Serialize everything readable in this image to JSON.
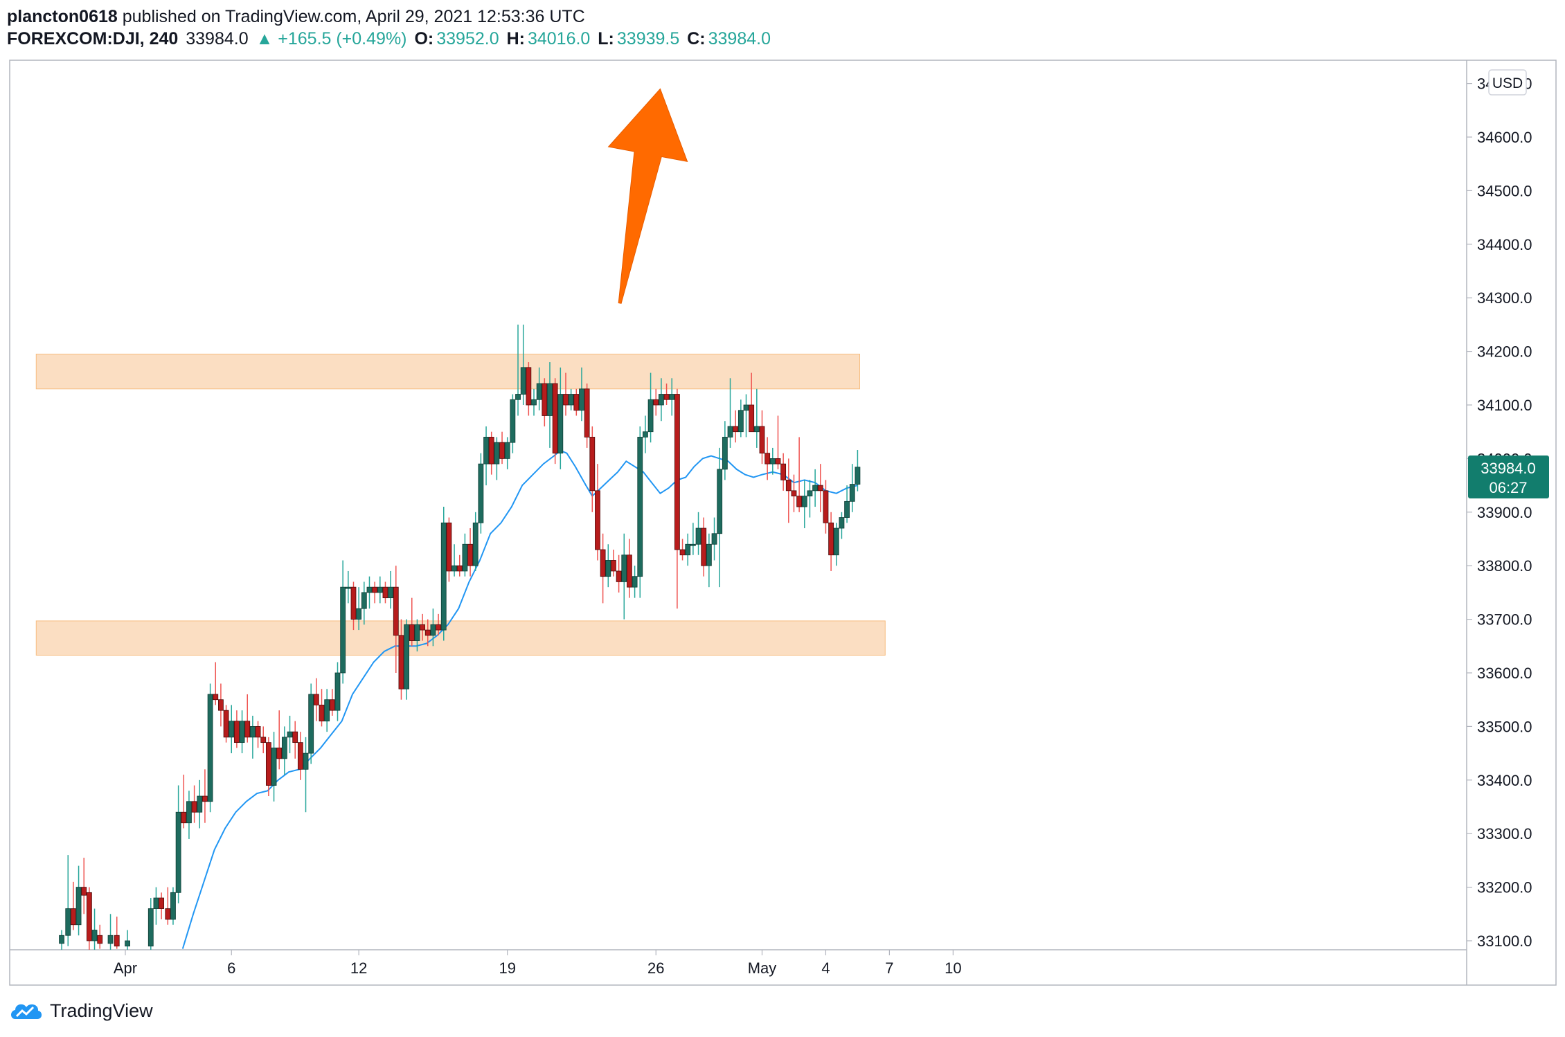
{
  "header": {
    "user": "plancton0618",
    "published": "published on TradingView.com, April 29, 2021 12:53:36 UTC",
    "symbol": "FOREXCOM:DJI, 240",
    "last": "33984.0",
    "change": "▲ +165.5 (+0.49%)",
    "o_label": "O:",
    "o_val": "33952.0",
    "h_label": "H:",
    "h_val": "34016.0",
    "l_label": "L:",
    "l_val": "33939.5",
    "c_label": "C:",
    "c_val": "33984.0"
  },
  "currency_label": "USD",
  "price_badge": {
    "price": "33984.0",
    "countdown": "06:27"
  },
  "branding": {
    "name": "TradingView"
  },
  "colors": {
    "up": "#26a69a",
    "down": "#ef5350",
    "candle_body_up": "#1e6b5e",
    "candle_body_down": "#b71c1c",
    "ma": "#2196f3",
    "zone_fill": "#fbd9b8",
    "zone_stroke": "#f5b26b",
    "arrow": "#ff6a00",
    "badge": "#127d6d"
  },
  "chart_data": {
    "type": "candlestick",
    "title": "",
    "ylabel": "",
    "ylim": [
      33080,
      34720
    ],
    "y_ticks": [
      "33100.0",
      "33200.0",
      "33300.0",
      "33400.0",
      "33500.0",
      "33600.0",
      "33700.0",
      "33800.0",
      "33900.0",
      "34000.0",
      "34100.0",
      "34200.0",
      "34300.0",
      "34400.0",
      "34500.0",
      "34600.0",
      "34700.0"
    ],
    "x_ticks": [
      {
        "label": "Apr",
        "day": 1
      },
      {
        "label": "6",
        "day": 6
      },
      {
        "label": "12",
        "day": 12
      },
      {
        "label": "19",
        "day": 19
      },
      {
        "label": "26",
        "day": 26
      },
      {
        "label": "May",
        "day": 31
      },
      {
        "label": "4",
        "day": 34
      },
      {
        "label": "7",
        "day": 37
      },
      {
        "label": "10",
        "day": 40
      }
    ],
    "zones": [
      {
        "from_day": -3.2,
        "to_day": 35.6,
        "low": 34130,
        "high": 34195
      },
      {
        "from_day": -3.2,
        "to_day": 36.8,
        "low": 33633,
        "high": 33697
      }
    ],
    "trend_arrow": {
      "from_day": 24.3,
      "from_price": 34290,
      "to_day": 26.2,
      "to_price": 34690
    },
    "candles": [
      [
        -2.0,
        33095,
        33120,
        33080,
        33110
      ],
      [
        -1.7,
        33110,
        33260,
        33090,
        33160
      ],
      [
        -1.45,
        33160,
        33210,
        33120,
        33130
      ],
      [
        -1.2,
        33130,
        33240,
        33110,
        33200
      ],
      [
        -0.95,
        33200,
        33255,
        33150,
        33185
      ],
      [
        -0.7,
        33190,
        33200,
        33080,
        33100
      ],
      [
        -0.45,
        33100,
        33160,
        33080,
        33120
      ],
      [
        -0.2,
        33110,
        33130,
        33085,
        33095
      ],
      [
        0.3,
        33095,
        33150,
        33080,
        33110
      ],
      [
        0.6,
        33110,
        33145,
        33085,
        33090
      ],
      [
        1.1,
        33090,
        33120,
        33080,
        33100
      ],
      [
        2.2,
        33090,
        33180,
        33080,
        33160
      ],
      [
        2.45,
        33160,
        33200,
        33130,
        33180
      ],
      [
        2.7,
        33180,
        33190,
        33140,
        33160
      ],
      [
        3.0,
        33160,
        33200,
        33130,
        33140
      ],
      [
        3.25,
        33140,
        33200,
        33130,
        33190
      ],
      [
        3.5,
        33190,
        33390,
        33170,
        33340
      ],
      [
        3.75,
        33340,
        33410,
        33310,
        33320
      ],
      [
        4.0,
        33320,
        33380,
        33290,
        33360
      ],
      [
        4.25,
        33360,
        33390,
        33320,
        33340
      ],
      [
        4.5,
        33340,
        33400,
        33310,
        33370
      ],
      [
        4.75,
        33370,
        33420,
        33320,
        33360
      ],
      [
        5.0,
        33360,
        33580,
        33340,
        33560
      ],
      [
        5.25,
        33560,
        33620,
        33540,
        33550
      ],
      [
        5.5,
        33550,
        33580,
        33500,
        33530
      ],
      [
        5.75,
        33530,
        33540,
        33470,
        33480
      ],
      [
        6.0,
        33480,
        33540,
        33450,
        33510
      ],
      [
        6.25,
        33510,
        33530,
        33460,
        33470
      ],
      [
        6.5,
        33470,
        33530,
        33450,
        33510
      ],
      [
        6.75,
        33510,
        33560,
        33470,
        33480
      ],
      [
        7.0,
        33480,
        33520,
        33440,
        33500
      ],
      [
        7.25,
        33500,
        33510,
        33460,
        33480
      ],
      [
        7.5,
        33480,
        33500,
        33450,
        33470
      ],
      [
        7.75,
        33470,
        33480,
        33370,
        33390
      ],
      [
        8.0,
        33390,
        33490,
        33360,
        33460
      ],
      [
        8.25,
        33460,
        33530,
        33420,
        33440
      ],
      [
        8.5,
        33440,
        33500,
        33410,
        33480
      ],
      [
        8.75,
        33480,
        33520,
        33450,
        33490
      ],
      [
        9.0,
        33490,
        33510,
        33440,
        33470
      ],
      [
        9.25,
        33470,
        33490,
        33400,
        33420
      ],
      [
        9.5,
        33420,
        33480,
        33340,
        33450
      ],
      [
        9.75,
        33450,
        33580,
        33430,
        33560
      ],
      [
        10.0,
        33560,
        33590,
        33510,
        33540
      ],
      [
        10.25,
        33540,
        33570,
        33500,
        33510
      ],
      [
        10.5,
        33510,
        33570,
        33490,
        33550
      ],
      [
        10.75,
        33550,
        33570,
        33520,
        33530
      ],
      [
        11.0,
        33530,
        33620,
        33510,
        33600
      ],
      [
        11.25,
        33600,
        33810,
        33580,
        33760
      ],
      [
        11.5,
        33760,
        33790,
        33730,
        33760
      ],
      [
        11.75,
        33760,
        33770,
        33680,
        33700
      ],
      [
        12.0,
        33700,
        33760,
        33680,
        33720
      ],
      [
        12.25,
        33720,
        33770,
        33690,
        33750
      ],
      [
        12.5,
        33750,
        33780,
        33720,
        33760
      ],
      [
        12.75,
        33760,
        33770,
        33730,
        33750
      ],
      [
        13.0,
        33750,
        33780,
        33730,
        33760
      ],
      [
        13.25,
        33760,
        33770,
        33730,
        33740
      ],
      [
        13.5,
        33740,
        33790,
        33720,
        33760
      ],
      [
        13.75,
        33760,
        33800,
        33600,
        33670
      ],
      [
        14.0,
        33670,
        33700,
        33550,
        33570
      ],
      [
        14.25,
        33570,
        33700,
        33550,
        33690
      ],
      [
        14.5,
        33690,
        33740,
        33650,
        33660
      ],
      [
        14.75,
        33660,
        33700,
        33640,
        33690
      ],
      [
        15.0,
        33690,
        33710,
        33660,
        33680
      ],
      [
        15.25,
        33680,
        33700,
        33650,
        33670
      ],
      [
        15.5,
        33670,
        33720,
        33650,
        33690
      ],
      [
        15.75,
        33690,
        33710,
        33670,
        33680
      ],
      [
        16.0,
        33680,
        33910,
        33660,
        33880
      ],
      [
        16.25,
        33880,
        33890,
        33770,
        33790
      ],
      [
        16.5,
        33790,
        33840,
        33780,
        33800
      ],
      [
        16.75,
        33800,
        33820,
        33780,
        33790
      ],
      [
        17.0,
        33790,
        33860,
        33780,
        33840
      ],
      [
        17.25,
        33840,
        33870,
        33780,
        33800
      ],
      [
        17.5,
        33800,
        33900,
        33790,
        33880
      ],
      [
        17.75,
        33880,
        34010,
        33860,
        33990
      ],
      [
        18.0,
        33990,
        34060,
        33950,
        34040
      ],
      [
        18.25,
        34040,
        34050,
        33970,
        33990
      ],
      [
        18.5,
        33990,
        34040,
        33960,
        34030
      ],
      [
        18.75,
        34030,
        34050,
        33990,
        34000
      ],
      [
        19.0,
        34000,
        34040,
        33980,
        34030
      ],
      [
        19.25,
        34030,
        34120,
        34010,
        34110
      ],
      [
        19.5,
        34110,
        34250,
        34080,
        34120
      ],
      [
        19.75,
        34120,
        34250,
        34100,
        34170
      ],
      [
        20.0,
        34170,
        34180,
        34080,
        34100
      ],
      [
        20.25,
        34100,
        34130,
        34080,
        34110
      ],
      [
        20.5,
        34110,
        34170,
        34090,
        34140
      ],
      [
        20.75,
        34140,
        34150,
        34060,
        34080
      ],
      [
        21.0,
        34080,
        34180,
        34020,
        34140
      ],
      [
        21.25,
        34140,
        34150,
        33990,
        34010
      ],
      [
        21.5,
        34010,
        34170,
        33980,
        34120
      ],
      [
        21.75,
        34120,
        34160,
        34080,
        34100
      ],
      [
        22.0,
        34100,
        34130,
        34090,
        34120
      ],
      [
        22.25,
        34120,
        34130,
        34080,
        34090
      ],
      [
        22.5,
        34090,
        34170,
        34070,
        34130
      ],
      [
        22.75,
        34130,
        34140,
        34020,
        34040
      ],
      [
        23.0,
        34040,
        34060,
        33900,
        33940
      ],
      [
        23.25,
        33940,
        33990,
        33810,
        33830
      ],
      [
        23.5,
        33830,
        33860,
        33730,
        33780
      ],
      [
        23.75,
        33780,
        33840,
        33760,
        33810
      ],
      [
        24.0,
        33810,
        33830,
        33780,
        33790
      ],
      [
        24.25,
        33790,
        33820,
        33750,
        33770
      ],
      [
        24.5,
        33770,
        33860,
        33700,
        33820
      ],
      [
        24.75,
        33820,
        33850,
        33740,
        33760
      ],
      [
        25.0,
        33760,
        33800,
        33740,
        33780
      ],
      [
        25.25,
        33780,
        34060,
        33740,
        34040
      ],
      [
        25.5,
        34040,
        34080,
        34010,
        34050
      ],
      [
        25.75,
        34050,
        34160,
        34030,
        34110
      ],
      [
        26.0,
        34110,
        34130,
        34080,
        34100
      ],
      [
        26.25,
        34100,
        34150,
        34070,
        34120
      ],
      [
        26.5,
        34120,
        34140,
        34100,
        34110
      ],
      [
        26.75,
        34110,
        34150,
        34080,
        34120
      ],
      [
        27.0,
        34120,
        34130,
        33720,
        33830
      ],
      [
        27.25,
        33830,
        33850,
        33810,
        33820
      ],
      [
        27.5,
        33820,
        33860,
        33800,
        33840
      ],
      [
        27.75,
        33840,
        33880,
        33820,
        33840
      ],
      [
        28.0,
        33840,
        33900,
        33820,
        33870
      ],
      [
        28.25,
        33870,
        33890,
        33780,
        33800
      ],
      [
        28.5,
        33800,
        33860,
        33760,
        33840
      ],
      [
        28.75,
        33840,
        33890,
        33810,
        33860
      ],
      [
        29.0,
        33860,
        34020,
        33760,
        33980
      ],
      [
        29.25,
        33980,
        34070,
        33960,
        34040
      ],
      [
        29.5,
        34040,
        34150,
        34020,
        34060
      ],
      [
        29.75,
        34060,
        34090,
        34030,
        34050
      ],
      [
        30.0,
        34050,
        34110,
        34040,
        34090
      ],
      [
        30.25,
        34090,
        34120,
        34040,
        34100
      ],
      [
        30.5,
        34100,
        34160,
        34050,
        34050
      ],
      [
        30.75,
        34050,
        34130,
        34020,
        34060
      ],
      [
        31.0,
        34060,
        34090,
        33990,
        34010
      ],
      [
        31.25,
        34010,
        34040,
        33960,
        33990
      ],
      [
        31.5,
        33990,
        34020,
        33970,
        34000
      ],
      [
        31.75,
        34000,
        34080,
        33980,
        33990
      ],
      [
        32.0,
        33990,
        34010,
        33940,
        33960
      ],
      [
        32.25,
        33960,
        34000,
        33880,
        33940
      ],
      [
        32.5,
        33940,
        33970,
        33900,
        33930
      ],
      [
        32.75,
        33930,
        34040,
        33900,
        33910
      ],
      [
        33.0,
        33910,
        33960,
        33870,
        33930
      ],
      [
        33.25,
        33930,
        33960,
        33890,
        33940
      ],
      [
        33.5,
        33940,
        33980,
        33910,
        33950
      ],
      [
        33.75,
        33950,
        33990,
        33900,
        33940
      ],
      [
        34.0,
        33940,
        33960,
        33860,
        33880
      ],
      [
        34.25,
        33880,
        33900,
        33790,
        33820
      ],
      [
        34.5,
        33820,
        33880,
        33800,
        33870
      ],
      [
        34.75,
        33870,
        33900,
        33850,
        33890
      ],
      [
        35.0,
        33890,
        33950,
        33880,
        33920
      ],
      [
        35.25,
        33920,
        33990,
        33900,
        33952
      ],
      [
        35.5,
        33952,
        34016,
        33939,
        33984
      ]
    ],
    "moving_average": [
      [
        3.7,
        33085
      ],
      [
        4.2,
        33150
      ],
      [
        4.7,
        33210
      ],
      [
        5.2,
        33270
      ],
      [
        5.7,
        33310
      ],
      [
        6.2,
        33340
      ],
      [
        6.7,
        33360
      ],
      [
        7.2,
        33375
      ],
      [
        7.7,
        33380
      ],
      [
        8.2,
        33400
      ],
      [
        8.7,
        33415
      ],
      [
        9.2,
        33420
      ],
      [
        9.7,
        33440
      ],
      [
        10.2,
        33460
      ],
      [
        10.7,
        33485
      ],
      [
        11.2,
        33510
      ],
      [
        11.7,
        33560
      ],
      [
        12.2,
        33590
      ],
      [
        12.7,
        33620
      ],
      [
        13.2,
        33640
      ],
      [
        13.7,
        33650
      ],
      [
        14.2,
        33650
      ],
      [
        14.7,
        33650
      ],
      [
        15.2,
        33655
      ],
      [
        15.7,
        33670
      ],
      [
        16.2,
        33690
      ],
      [
        16.7,
        33720
      ],
      [
        17.2,
        33770
      ],
      [
        17.7,
        33810
      ],
      [
        18.2,
        33860
      ],
      [
        18.7,
        33880
      ],
      [
        19.2,
        33910
      ],
      [
        19.7,
        33950
      ],
      [
        20.2,
        33970
      ],
      [
        20.7,
        33990
      ],
      [
        21.2,
        34005
      ],
      [
        21.5,
        34015
      ],
      [
        21.8,
        34010
      ],
      [
        22.2,
        33985
      ],
      [
        22.7,
        33950
      ],
      [
        23.0,
        33930
      ],
      [
        23.4,
        33945
      ],
      [
        23.8,
        33960
      ],
      [
        24.2,
        33975
      ],
      [
        24.6,
        33995
      ],
      [
        25.0,
        33985
      ],
      [
        25.4,
        33975
      ],
      [
        25.8,
        33955
      ],
      [
        26.2,
        33935
      ],
      [
        26.6,
        33945
      ],
      [
        27.0,
        33960
      ],
      [
        27.4,
        33965
      ],
      [
        27.8,
        33985
      ],
      [
        28.2,
        34000
      ],
      [
        28.6,
        34005
      ],
      [
        29.0,
        34000
      ],
      [
        29.4,
        33995
      ],
      [
        29.8,
        33980
      ],
      [
        30.2,
        33970
      ],
      [
        30.6,
        33965
      ],
      [
        31.0,
        33970
      ],
      [
        31.5,
        33975
      ],
      [
        32.0,
        33970
      ],
      [
        32.5,
        33955
      ],
      [
        33.0,
        33960
      ],
      [
        33.5,
        33955
      ],
      [
        34.0,
        33940
      ],
      [
        34.5,
        33935
      ],
      [
        35.0,
        33945
      ],
      [
        35.5,
        33950
      ]
    ]
  }
}
